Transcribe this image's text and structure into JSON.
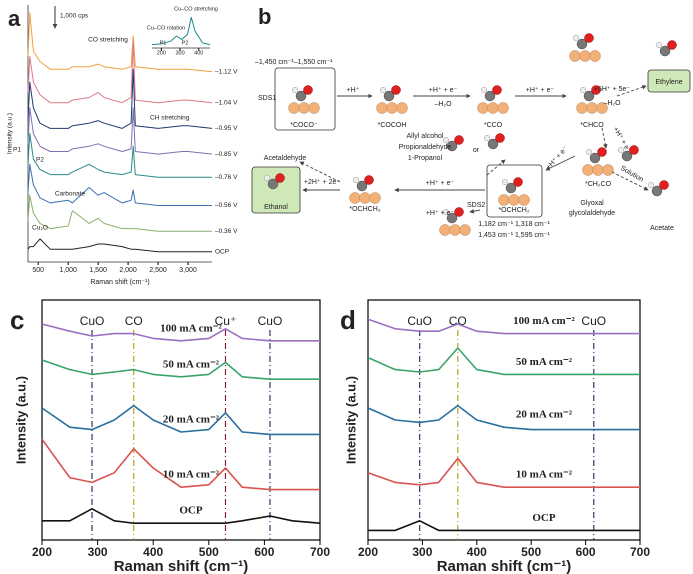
{
  "chart_data": [
    {
      "type": "line",
      "panel_label": "a",
      "x_label": "Raman shift (cm⁻¹)",
      "y_label": "Intensity (a.u.)",
      "x": [
        330,
        360,
        420,
        530,
        700,
        1000,
        1070,
        1350,
        1500,
        1600,
        1900,
        2050,
        2085,
        2120,
        2500,
        2900,
        3000,
        3400
      ],
      "xlim": [
        330,
        3400
      ],
      "ylim": [
        0,
        100
      ],
      "xticks": [
        500,
        {
          "value": 1000,
          "label": "1,000"
        },
        {
          "value": 1500,
          "label": "1,500"
        },
        {
          "value": 2000,
          "label": "2,000"
        },
        {
          "value": 2500,
          "label": "2,500"
        },
        {
          "value": 3000,
          "label": "3,000"
        }
      ],
      "series": [
        {
          "name": "–1.12 V",
          "color": "#f0a040",
          "values": [
            80,
            97,
            82,
            78,
            75,
            75,
            76,
            76,
            77,
            76,
            75,
            76,
            88,
            76,
            75,
            75,
            75,
            74
          ]
        },
        {
          "name": "–1.04 V",
          "color": "#e07888",
          "values": [
            66,
            80,
            70,
            65,
            62,
            62,
            63,
            64,
            66,
            64,
            62,
            64,
            86,
            63,
            62,
            63,
            63,
            62
          ]
        },
        {
          "name": "–0.95 V",
          "color": "#1f3a6e",
          "values": [
            55,
            70,
            60,
            54,
            52,
            52,
            53,
            54,
            55,
            54,
            52,
            54,
            75,
            53,
            52,
            53,
            53,
            52
          ]
        },
        {
          "name": "–0.85 V",
          "color": "#8070b0",
          "values": [
            46,
            60,
            50,
            45,
            43,
            43,
            44,
            45,
            46,
            45,
            43,
            44,
            60,
            43,
            42,
            43,
            43,
            42
          ]
        },
        {
          "name": "–0.76 V",
          "color": "#2a8a8a",
          "values": [
            38,
            50,
            40,
            36,
            34,
            34,
            35,
            38,
            36,
            35,
            34,
            35,
            45,
            34,
            33,
            33,
            33,
            33
          ]
        },
        {
          "name": "–0.56 V",
          "color": "#3a70b0",
          "values": [
            27,
            38,
            30,
            25,
            23,
            24,
            23,
            29,
            26,
            27,
            23,
            24,
            28,
            23,
            22,
            22,
            22,
            22
          ]
        },
        {
          "name": "–0.36 V",
          "color": "#8ab070",
          "values": [
            16,
            26,
            19,
            15,
            13,
            14,
            20,
            15,
            17,
            15,
            13,
            13,
            13,
            13,
            12,
            12,
            12,
            12
          ]
        },
        {
          "name": "OCP",
          "color": "#222222",
          "values": [
            5,
            6,
            6,
            9,
            5,
            5,
            5,
            6,
            7,
            7,
            6,
            5,
            5,
            5,
            4,
            4,
            4,
            4
          ]
        }
      ],
      "annotations": [
        "1,000 cps",
        "CO stretching",
        "CH stretching",
        "P1",
        "P2",
        "Carbonate",
        "Cu₂O"
      ]
    },
    {
      "type": "line",
      "x": [
        150,
        200,
        250,
        280,
        310,
        340,
        360,
        380,
        420,
        460
      ],
      "xlim": [
        150,
        460
      ],
      "ylim": [
        0,
        100
      ],
      "xticks": [
        200,
        300,
        400
      ],
      "series": [
        {
          "color": "#1f8a8a",
          "values": [
            10,
            12,
            20,
            35,
            25,
            40,
            90,
            50,
            15,
            10
          ]
        }
      ],
      "annotations": [
        "Cu–CO stretching",
        "Cu–CO rotation",
        "P1",
        "P2"
      ]
    },
    {
      "type": "line",
      "panel_label": "c",
      "x_label": "Raman shift (cm⁻¹)",
      "y_label": "Intensity (a.u.)",
      "frame": true,
      "x": [
        200,
        250,
        290,
        330,
        365,
        400,
        450,
        500,
        530,
        560,
        610,
        650,
        700
      ],
      "xlim": [
        200,
        700
      ],
      "ylim": [
        0,
        100
      ],
      "xticks": [
        200,
        300,
        400,
        500,
        600,
        700
      ],
      "series": [
        {
          "name": "100 mA cm⁻²",
          "color": "#9b6fc4",
          "values": [
            90,
            87,
            85,
            86,
            86,
            84,
            83,
            84,
            88,
            84,
            83,
            83,
            83
          ]
        },
        {
          "name": "50 mA cm⁻²",
          "color": "#3aa36a",
          "values": [
            75,
            71,
            69,
            70,
            71,
            69,
            68,
            69,
            74,
            68,
            67,
            67,
            67
          ]
        },
        {
          "name": "20 mA cm⁻²",
          "color": "#2a6f9e",
          "values": [
            55,
            47,
            46,
            50,
            56,
            50,
            45,
            46,
            53,
            45,
            44,
            44,
            44
          ]
        },
        {
          "name": "10 mA cm⁻²",
          "color": "#d9534f",
          "values": [
            42,
            26,
            24,
            28,
            38,
            30,
            22,
            23,
            30,
            22,
            21,
            21,
            21
          ]
        },
        {
          "name": "OCP",
          "color": "#111111",
          "values": [
            8,
            8,
            13,
            8,
            7,
            7,
            7,
            7,
            7,
            8,
            10,
            8,
            7
          ]
        }
      ],
      "reference_lines": [
        {
          "x": 290,
          "label": "CuO",
          "color": "#333366"
        },
        {
          "x": 365,
          "label": "CO",
          "color": "#b8a020"
        },
        {
          "x": 530,
          "label": "Cu⁺",
          "color": "#8a2040"
        },
        {
          "x": 610,
          "label": "CuO",
          "color": "#333366"
        }
      ]
    },
    {
      "type": "line",
      "panel_label": "d",
      "x_label": "Raman shift (cm⁻¹)",
      "y_label": "Intensity (a.u.)",
      "frame": true,
      "x": [
        200,
        250,
        295,
        330,
        365,
        400,
        450,
        500,
        550,
        600,
        650,
        700
      ],
      "xlim": [
        200,
        700
      ],
      "ylim": [
        0,
        100
      ],
      "xticks": [
        200,
        300,
        400,
        500,
        600,
        700
      ],
      "series": [
        {
          "name": "100 mA cm⁻²",
          "color": "#9b6fc4",
          "values": [
            92,
            88,
            87,
            87,
            90,
            87,
            86,
            86,
            86,
            86,
            86,
            86
          ]
        },
        {
          "name": "50 mA cm⁻²",
          "color": "#3aa36a",
          "values": [
            76,
            71,
            70,
            71,
            80,
            71,
            69,
            69,
            69,
            69,
            69,
            69
          ]
        },
        {
          "name": "20 mA cm⁻²",
          "color": "#2a6f9e",
          "values": [
            55,
            50,
            49,
            50,
            56,
            50,
            47,
            46,
            46,
            46,
            46,
            46
          ]
        },
        {
          "name": "10 mA cm⁻²",
          "color": "#d9534f",
          "values": [
            28,
            24,
            23,
            24,
            34,
            24,
            22,
            22,
            22,
            22,
            22,
            22
          ]
        },
        {
          "name": "OCP",
          "color": "#111111",
          "values": [
            4,
            4,
            8,
            4,
            4,
            4,
            4,
            4,
            4,
            4,
            4,
            4
          ]
        }
      ],
      "reference_lines": [
        {
          "x": 295,
          "label": "CuO",
          "color": "#333366"
        },
        {
          "x": 365,
          "label": "CO",
          "color": "#b8a020"
        },
        {
          "x": 615,
          "label": "CuO",
          "color": "#333366"
        }
      ]
    }
  ],
  "diagram": {
    "panel_label": "b",
    "labels": [
      "–1,450 cm⁻¹–1,550 cm⁻¹",
      "SDS1",
      "*COCO⁻",
      "+H⁺",
      "*COCOH",
      "+H⁺ + e⁻",
      "–H₂O",
      "*CCO",
      "+H⁺ + e⁻",
      "*CHCO",
      "+5H⁺ + 5e⁻",
      "–H₂O",
      "Ethylene",
      "+H⁺ + e⁻",
      "Allyl alcohol",
      "Propionaldehyde",
      "1-Propanol",
      "or",
      "+H⁺ + e⁻",
      "*CH₂CO",
      "Solution",
      "Acetate",
      "SDS2",
      "*OCHCH₂",
      "1,182 cm⁻¹ 1,318 cm⁻¹",
      "1,453 cm⁻¹ 1,595 cm⁻¹",
      "Glyoxal",
      "glycolaldehyde",
      "+H⁺ + e⁻",
      "*OCHCH₃",
      "+2H⁺ + 2e⁻",
      "Acetaldehyde",
      "Ethanol",
      "+H⁺ + e⁻"
    ]
  }
}
